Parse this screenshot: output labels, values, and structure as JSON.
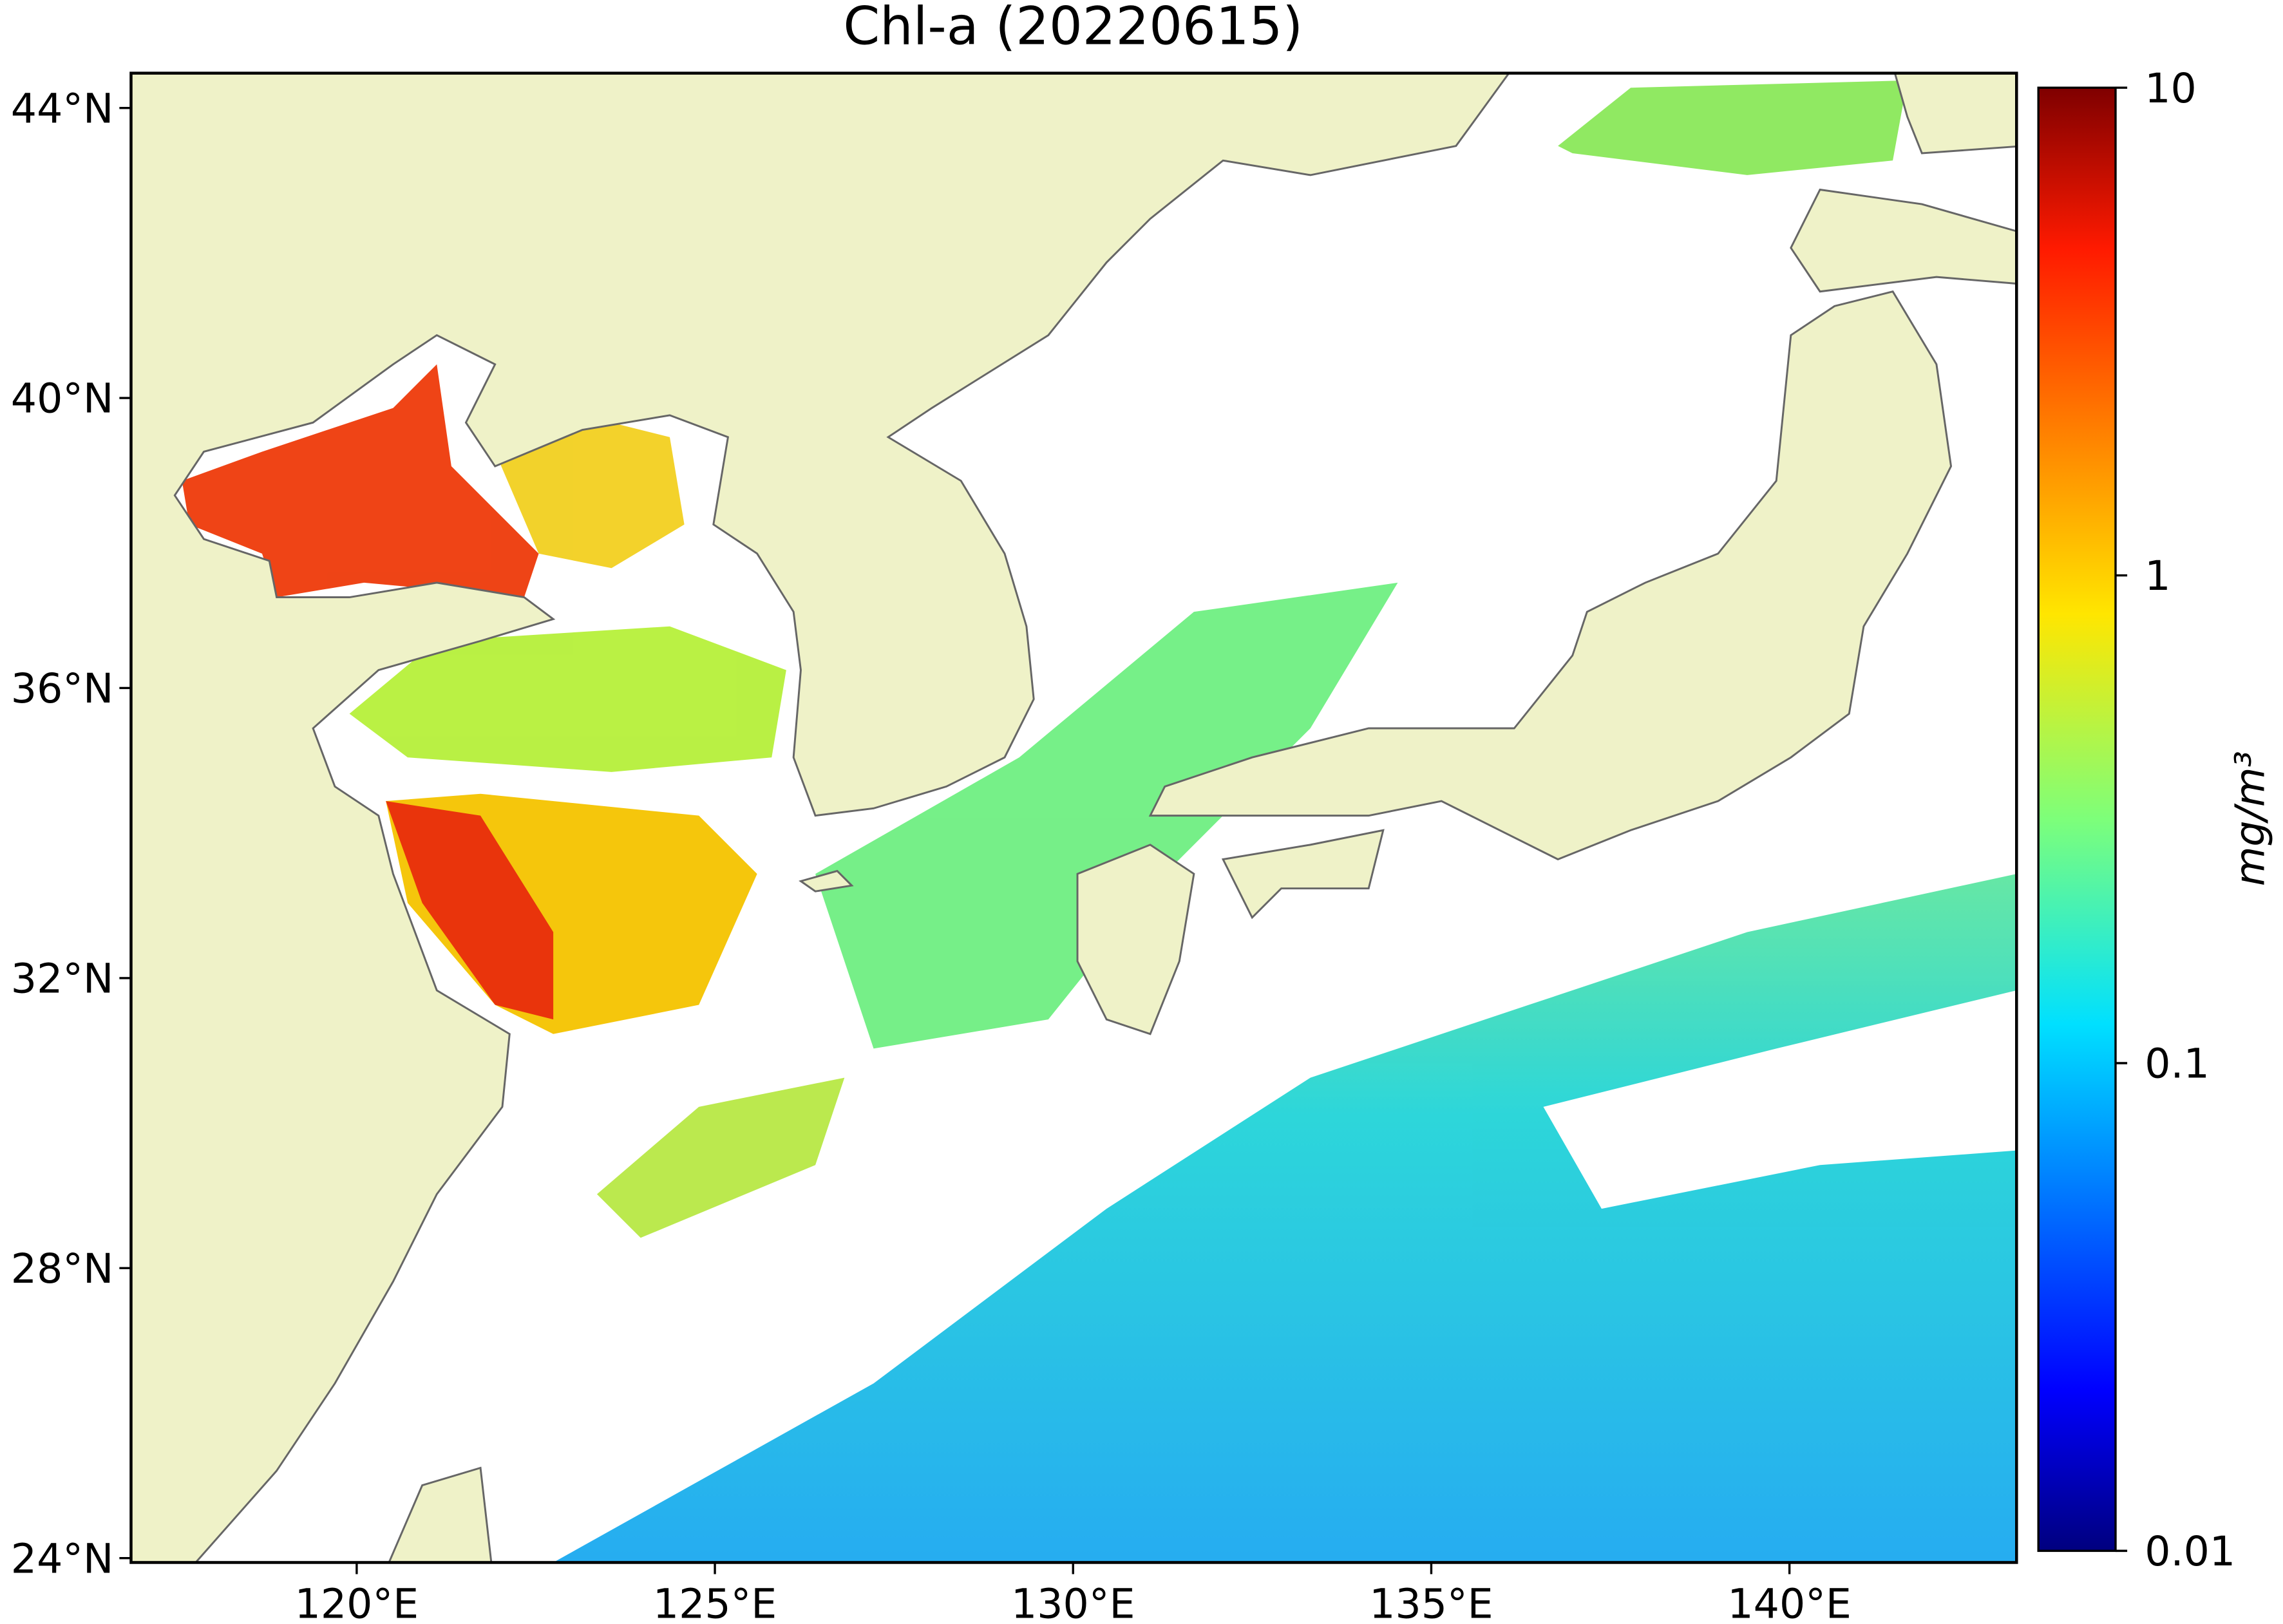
{
  "chart_data": {
    "type": "map",
    "title": "Chl-a (20220615)",
    "xlim": [
      116.85,
      143.17
    ],
    "ylim": [
      23.94,
      44.48
    ],
    "xticks": [
      {
        "value": 120,
        "label": "120°E"
      },
      {
        "value": 125,
        "label": "125°E"
      },
      {
        "value": 130,
        "label": "130°E"
      },
      {
        "value": 135,
        "label": "135°E"
      },
      {
        "value": 140,
        "label": "140°E"
      }
    ],
    "yticks": [
      {
        "value": 24,
        "label": "24°N"
      },
      {
        "value": 28,
        "label": "28°N"
      },
      {
        "value": 32,
        "label": "32°N"
      },
      {
        "value": 36,
        "label": "36°N"
      },
      {
        "value": 40,
        "label": "40°N"
      },
      {
        "value": 44,
        "label": "44°N"
      }
    ],
    "colorbar": {
      "label": "mg/m³",
      "lim": [
        0.01,
        10
      ],
      "log_scale": true,
      "ticks": [
        0.01,
        0.1,
        1,
        10
      ],
      "colormap": "jet"
    }
  }
}
